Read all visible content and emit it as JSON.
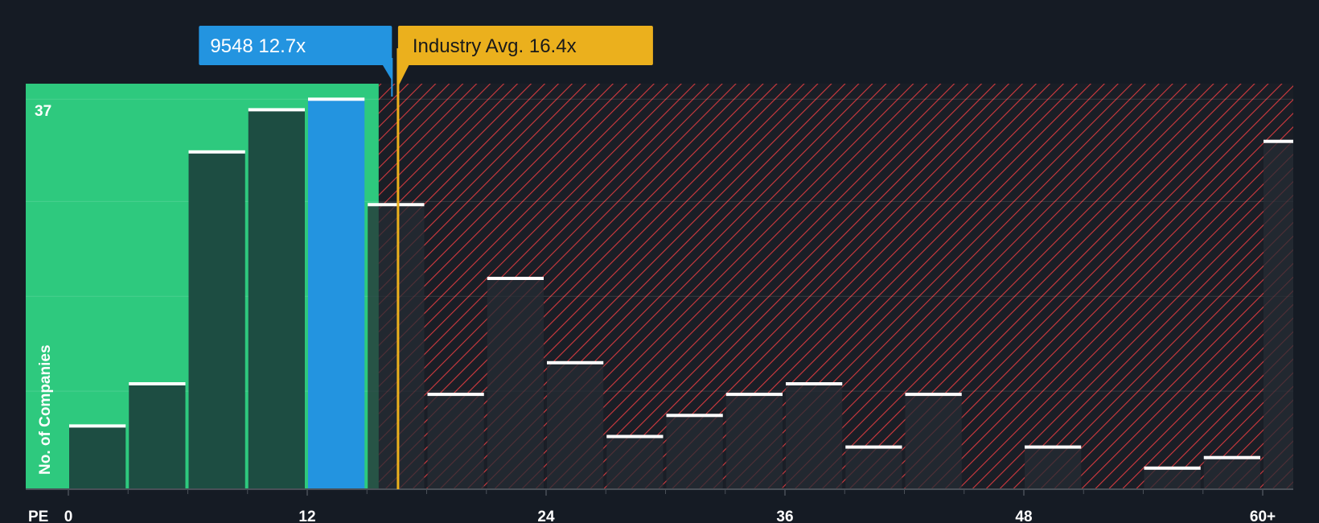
{
  "chart_data": {
    "type": "bar",
    "title": "",
    "xlabel": "PE",
    "ylabel": "No. of Companies",
    "x_ticks": [
      "0",
      "12",
      "24",
      "36",
      "48",
      "60+"
    ],
    "x_tick_values": [
      0,
      12,
      24,
      36,
      48,
      60
    ],
    "y_tick_label": "37",
    "ylim": [
      0,
      38
    ],
    "bin_width": 3,
    "bins": [
      {
        "x": 0,
        "value": 6
      },
      {
        "x": 3,
        "value": 10
      },
      {
        "x": 6,
        "value": 32
      },
      {
        "x": 9,
        "value": 36
      },
      {
        "x": 12,
        "value": 37,
        "highlight": true
      },
      {
        "x": 15,
        "value": 27
      },
      {
        "x": 18,
        "value": 9
      },
      {
        "x": 21,
        "value": 20
      },
      {
        "x": 24,
        "value": 12
      },
      {
        "x": 27,
        "value": 5
      },
      {
        "x": 30,
        "value": 7
      },
      {
        "x": 33,
        "value": 9
      },
      {
        "x": 36,
        "value": 10
      },
      {
        "x": 39,
        "value": 4
      },
      {
        "x": 42,
        "value": 9
      },
      {
        "x": 45,
        "value": 0
      },
      {
        "x": 48,
        "value": 4
      },
      {
        "x": 51,
        "value": 0
      },
      {
        "x": 54,
        "value": 2
      },
      {
        "x": 57,
        "value": 3
      },
      {
        "x": 60,
        "value": 33
      }
    ],
    "company": {
      "label": "9548 12.7x",
      "pe": 12.7
    },
    "industry": {
      "label": "Industry Avg. 16.4x",
      "pe": 16.4
    },
    "grid": true,
    "colors": {
      "background": "#151b24",
      "fair_zone": "#2ec97e",
      "bar_in_fair": "#1d4d42",
      "bar_out": "#252c34",
      "highlight_bar": "#2394e0",
      "overvalued_hatch": "#d33a3f",
      "overvalued_bg": "#1a1e26",
      "industry_line": "#ebb01d",
      "company_callout": "#2394e0",
      "industry_callout": "#ebb01d",
      "bar_cap": "#ffffff"
    }
  }
}
